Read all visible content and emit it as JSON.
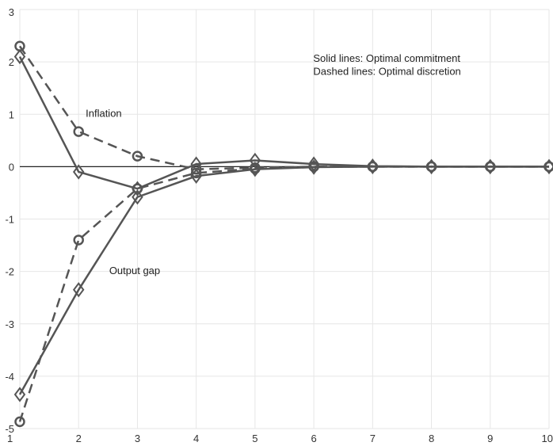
{
  "chart_data": {
    "type": "line",
    "title": "",
    "xlabel": "",
    "ylabel": "",
    "xlim": [
      1,
      10
    ],
    "ylim": [
      -5,
      3
    ],
    "grid": true,
    "x_ticks": [
      "1",
      "2",
      "3",
      "4",
      "5",
      "6",
      "7",
      "8",
      "9",
      "10"
    ],
    "y_ticks": [
      "-5",
      "-4",
      "-3",
      "-2",
      "-1",
      "0",
      "1",
      "2",
      "3"
    ],
    "x": [
      1,
      2,
      3,
      4,
      5,
      6,
      7,
      8,
      9,
      10
    ],
    "series": [
      {
        "values": [
          2.1,
          -0.1,
          -0.42,
          0.05,
          0.12,
          0.05,
          0.01,
          0.0,
          0.0,
          0.0
        ],
        "line_style": "solid",
        "marker": "diamond",
        "color": "#555555"
      },
      {
        "values": [
          2.3,
          0.67,
          0.2,
          -0.05,
          -0.02,
          0.0,
          0.0,
          0.0,
          0.0,
          0.0
        ],
        "line_style": "dashed",
        "marker": "circle",
        "color": "#555555"
      },
      {
        "values": [
          -4.35,
          -2.35,
          -0.58,
          -0.18,
          -0.05,
          -0.01,
          0.0,
          0.0,
          0.0,
          0.0
        ],
        "line_style": "solid",
        "marker": "diamond",
        "color": "#555555"
      },
      {
        "values": [
          -4.87,
          -1.4,
          -0.42,
          -0.12,
          -0.04,
          0.0,
          0.0,
          0.0,
          0.0,
          0.0
        ],
        "line_style": "dashed",
        "marker": "circle",
        "color": "#555555"
      }
    ],
    "annotations": [
      {
        "text": "Inflation",
        "x": 2.12,
        "y": 0.95
      },
      {
        "text": "Output gap",
        "x": 2.52,
        "y": -2.05
      },
      {
        "text": "Solid lines: Optimal commitment",
        "x": 5.99,
        "y": 2.0
      },
      {
        "text": "Dashed lines: Optimal discretion",
        "x": 5.99,
        "y": 1.75
      }
    ]
  }
}
